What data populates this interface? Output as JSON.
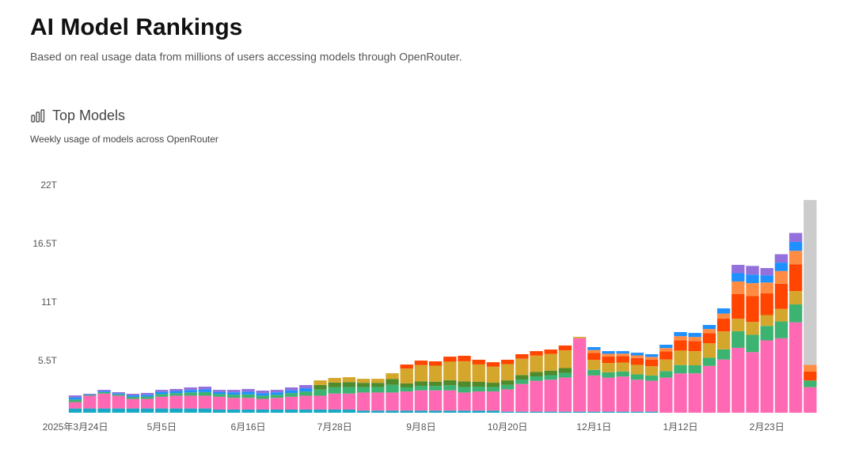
{
  "header": {
    "title": "AI Model Rankings",
    "subtitle": "Based on real usage data from millions of users accessing models through OpenRouter."
  },
  "chart_data": {
    "type": "bar",
    "stacked": true,
    "title": "Top Models",
    "subtitle": "Weekly usage of models across OpenRouter",
    "categories": [
      "2025年3月24日",
      null,
      null,
      null,
      null,
      null,
      "5月5日",
      null,
      null,
      null,
      null,
      null,
      "6月16日",
      null,
      null,
      null,
      null,
      null,
      "7月28日",
      null,
      null,
      null,
      null,
      null,
      "9月8日",
      null,
      null,
      null,
      null,
      null,
      "10月20日",
      null,
      null,
      null,
      null,
      null,
      "12月1日",
      null,
      null,
      null,
      null,
      null,
      "1月12日",
      null,
      null,
      null,
      null,
      null,
      "2月23日",
      null,
      null,
      null
    ],
    "ylim": [
      0,
      22
    ],
    "yticks": [
      {
        "value": 5.5,
        "label": "5.5T"
      },
      {
        "value": 11,
        "label": "11T"
      },
      {
        "value": 16.5,
        "label": "16.5T"
      },
      {
        "value": 22,
        "label": "22T"
      }
    ],
    "grid": false,
    "series": [
      {
        "color": "#17a9c6",
        "values": [
          0.4,
          0.4,
          0.4,
          0.4,
          0.4,
          0.4,
          0.4,
          0.4,
          0.4,
          0.4,
          0.3,
          0.3,
          0.3,
          0.3,
          0.3,
          0.3,
          0.3,
          0.3,
          0.3,
          0.3,
          0.2,
          0.2,
          0.2,
          0.2,
          0.2,
          0.2,
          0.2,
          0.2,
          0.2,
          0.2,
          0.1,
          0.1,
          0.1,
          0.1,
          0.1,
          0.1,
          0.1,
          0.1,
          0.1,
          0.1,
          0.1,
          null,
          null,
          null,
          null,
          null,
          null,
          null,
          null,
          null,
          null,
          null
        ]
      },
      {
        "color": "#ff69b4",
        "values": [
          0.6,
          1.2,
          1.4,
          1.2,
          0.9,
          0.9,
          1.1,
          1.2,
          1.2,
          1.2,
          1.2,
          1.1,
          1.1,
          1.0,
          1.1,
          1.2,
          1.3,
          1.3,
          1.5,
          1.5,
          1.7,
          1.7,
          1.7,
          1.8,
          1.9,
          1.9,
          1.9,
          1.7,
          1.8,
          1.8,
          2.1,
          2.6,
          2.9,
          3.0,
          3.2,
          6.9,
          3.4,
          3.2,
          3.3,
          3.0,
          2.9,
          3.3,
          3.7,
          3.7,
          4.4,
          5.0,
          6.1,
          5.7,
          6.8,
          7.0,
          8.5,
          2.4
        ]
      },
      {
        "color": "#3cb371",
        "values": [
          0.25,
          0.07,
          0.14,
          0.13,
          0.19,
          0.22,
          0.26,
          0.25,
          0.31,
          0.34,
          0.26,
          0.3,
          0.33,
          0.31,
          0.3,
          0.35,
          0.4,
          0.58,
          0.59,
          0.62,
          0.52,
          0.52,
          0.72,
          0.38,
          0.42,
          0.41,
          0.48,
          0.52,
          0.45,
          0.41,
          0.42,
          0.42,
          0.42,
          0.43,
          0.45,
          null,
          0.53,
          0.5,
          0.48,
          0.51,
          0.5,
          0.62,
          0.78,
          0.76,
          0.77,
          0.96,
          1.56,
          1.62,
          1.36,
          1.58,
          1.68,
          0.63
        ]
      },
      {
        "color": "#4f8a2b",
        "values": [
          null,
          null,
          null,
          null,
          null,
          null,
          null,
          null,
          null,
          null,
          null,
          null,
          null,
          null,
          null,
          null,
          null,
          0.43,
          0.44,
          0.46,
          0.39,
          0.39,
          0.54,
          0.38,
          0.42,
          0.41,
          0.48,
          0.52,
          0.45,
          0.41,
          0.42,
          0.42,
          0.42,
          0.43,
          0.45,
          null,
          null,
          null,
          null,
          null,
          null,
          null,
          null,
          null,
          null,
          null,
          null,
          null,
          null,
          null,
          null,
          null
        ]
      },
      {
        "color": "#d4a72c",
        "values": [
          null,
          null,
          null,
          null,
          null,
          null,
          null,
          null,
          null,
          null,
          null,
          null,
          null,
          null,
          null,
          null,
          null,
          0.43,
          0.44,
          0.46,
          0.38,
          0.38,
          0.55,
          1.39,
          1.54,
          1.5,
          1.74,
          1.9,
          1.64,
          1.51,
          1.53,
          1.54,
          1.53,
          1.56,
          1.66,
          0.13,
          0.93,
          0.87,
          0.84,
          0.89,
          0.88,
          1.08,
          1.36,
          1.33,
          1.35,
          1.68,
          1.17,
          1.21,
          1.02,
          1.18,
          1.26,
          null
        ]
      },
      {
        "color": "#ff4500",
        "values": [
          null,
          null,
          null,
          null,
          null,
          null,
          null,
          null,
          null,
          null,
          null,
          null,
          null,
          null,
          null,
          null,
          null,
          null,
          null,
          null,
          null,
          null,
          null,
          0.38,
          0.42,
          0.41,
          0.47,
          0.51,
          0.44,
          0.42,
          0.41,
          0.42,
          0.42,
          0.42,
          0.46,
          null,
          0.67,
          0.62,
          0.6,
          0.64,
          0.62,
          0.77,
          0.97,
          0.95,
          0.96,
          1.2,
          2.34,
          2.43,
          2.04,
          2.37,
          2.52,
          0.84
        ]
      },
      {
        "color": "#ff8c42",
        "values": [
          null,
          null,
          null,
          null,
          null,
          null,
          null,
          null,
          null,
          null,
          null,
          null,
          null,
          null,
          null,
          null,
          null,
          null,
          null,
          null,
          null,
          null,
          null,
          null,
          null,
          null,
          null,
          null,
          null,
          null,
          null,
          null,
          null,
          null,
          null,
          null,
          0.27,
          0.25,
          0.24,
          0.25,
          0.25,
          0.31,
          0.39,
          0.38,
          0.39,
          0.48,
          1.17,
          1.22,
          1.02,
          1.19,
          1.26,
          0.63
        ]
      },
      {
        "color": "#1e90ff",
        "values": [
          0.19,
          0.05,
          0.1,
          0.1,
          0.14,
          0.17,
          0.2,
          0.19,
          0.23,
          0.26,
          0.2,
          0.22,
          0.25,
          0.23,
          0.22,
          0.26,
          0.3,
          null,
          null,
          null,
          null,
          null,
          null,
          null,
          null,
          null,
          null,
          null,
          null,
          null,
          null,
          null,
          null,
          null,
          null,
          null,
          0.27,
          0.25,
          0.23,
          0.25,
          0.25,
          0.31,
          0.38,
          0.38,
          0.38,
          0.49,
          0.78,
          0.81,
          0.68,
          0.79,
          0.84,
          null
        ]
      },
      {
        "color": "#9370db",
        "values": [
          0.19,
          0.06,
          0.11,
          0.1,
          0.15,
          0.17,
          0.19,
          0.19,
          0.24,
          0.25,
          0.19,
          0.23,
          0.25,
          0.24,
          0.23,
          0.27,
          0.3,
          null,
          null,
          null,
          null,
          null,
          null,
          null,
          null,
          null,
          null,
          null,
          null,
          null,
          null,
          null,
          null,
          null,
          null,
          null,
          null,
          null,
          null,
          null,
          null,
          null,
          null,
          null,
          null,
          null,
          0.78,
          0.81,
          0.68,
          0.79,
          0.84,
          null
        ]
      },
      {
        "color": "#cccccc",
        "values": [
          null,
          null,
          null,
          null,
          null,
          null,
          null,
          null,
          null,
          null,
          null,
          null,
          null,
          null,
          null,
          null,
          null,
          null,
          null,
          null,
          null,
          null,
          null,
          null,
          null,
          null,
          null,
          null,
          null,
          null,
          null,
          null,
          null,
          null,
          null,
          null,
          null,
          null,
          null,
          null,
          null,
          null,
          null,
          null,
          null,
          null,
          null,
          null,
          null,
          null,
          null,
          15.5
        ]
      }
    ]
  }
}
